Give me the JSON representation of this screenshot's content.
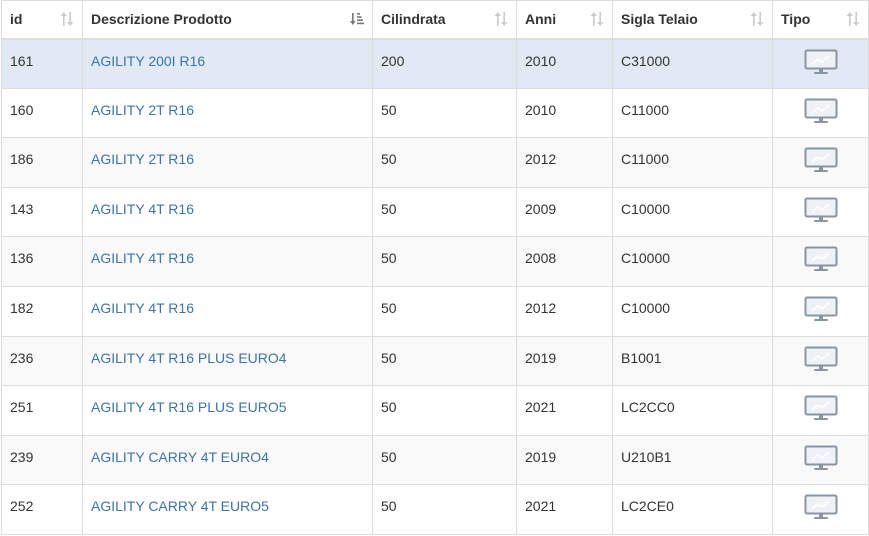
{
  "table": {
    "columns": [
      {
        "label": "id",
        "sort": "none"
      },
      {
        "label": "Descrizione Prodotto",
        "sort": "ascending"
      },
      {
        "label": "Cilindrata",
        "sort": "none"
      },
      {
        "label": "Anni",
        "sort": "none"
      },
      {
        "label": "Sigla Telaio",
        "sort": "none"
      },
      {
        "label": "Tipo",
        "sort": "none"
      }
    ],
    "rows": [
      {
        "id": "161",
        "descr": "AGILITY 200I R16",
        "cil": "200",
        "anni": "2010",
        "sigla": "C31000",
        "tipo_icon": "monitor-icon",
        "selected": true
      },
      {
        "id": "160",
        "descr": "AGILITY 2T R16",
        "cil": "50",
        "anni": "2010",
        "sigla": "C11000",
        "tipo_icon": "monitor-icon"
      },
      {
        "id": "186",
        "descr": "AGILITY 2T R16",
        "cil": "50",
        "anni": "2012",
        "sigla": "C11000",
        "tipo_icon": "monitor-icon"
      },
      {
        "id": "143",
        "descr": "AGILITY 4T R16",
        "cil": "50",
        "anni": "2009",
        "sigla": "C10000",
        "tipo_icon": "monitor-icon"
      },
      {
        "id": "136",
        "descr": "AGILITY 4T R16",
        "cil": "50",
        "anni": "2008",
        "sigla": "C10000",
        "tipo_icon": "monitor-icon"
      },
      {
        "id": "182",
        "descr": "AGILITY 4T R16",
        "cil": "50",
        "anni": "2012",
        "sigla": "C10000",
        "tipo_icon": "monitor-icon"
      },
      {
        "id": "236",
        "descr": "AGILITY 4T R16 PLUS EURO4",
        "cil": "50",
        "anni": "2019",
        "sigla": "B1001",
        "tipo_icon": "monitor-icon"
      },
      {
        "id": "251",
        "descr": "AGILITY 4T R16 PLUS EURO5",
        "cil": "50",
        "anni": "2021",
        "sigla": "LC2CC0",
        "tipo_icon": "monitor-icon"
      },
      {
        "id": "239",
        "descr": "AGILITY CARRY 4T EURO4",
        "cil": "50",
        "anni": "2019",
        "sigla": "U210B1",
        "tipo_icon": "monitor-icon"
      },
      {
        "id": "252",
        "descr": "AGILITY CARRY 4T EURO5",
        "cil": "50",
        "anni": "2021",
        "sigla": "LC2CE0",
        "tipo_icon": "monitor-icon"
      }
    ]
  },
  "colors": {
    "link": "#3d73a6",
    "selected_row": "#e1e9f4",
    "odd_row": "#f9f9f9",
    "sort_icon_inactive": "#cccccc",
    "sort_icon_active": "#777777",
    "monitor_icon": "#8a95a2"
  }
}
